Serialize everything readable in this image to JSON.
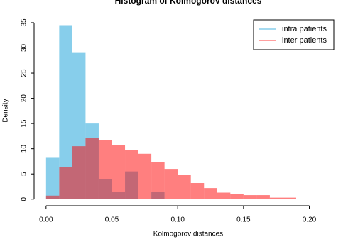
{
  "chart_data": {
    "type": "histogram",
    "title": "Histogram of Kolmogorov distances",
    "x_label": "Kolmogorov distances",
    "y_label": "Density",
    "bins": [
      0,
      0.01,
      0.02,
      0.03,
      0.04,
      0.05,
      0.06,
      0.07,
      0.08,
      0.09,
      0.1,
      0.11,
      0.12,
      0.13,
      0.14,
      0.15,
      0.16,
      0.17,
      0.18,
      0.19,
      0.2,
      0.21,
      0.22
    ],
    "series": [
      {
        "name": "intra patients",
        "color": "#87ceeb",
        "opacity": 1,
        "values": [
          8.2,
          34.5,
          29.0,
          15.0,
          4.0,
          1.4,
          5.5,
          0,
          1.4,
          0,
          0,
          0,
          0,
          0,
          0,
          0,
          0,
          0,
          0,
          0,
          0,
          0
        ]
      },
      {
        "name": "inter patients",
        "color": "#ff0000",
        "opacity": 0.5,
        "values": [
          0.7,
          6.3,
          10.5,
          12.1,
          11.7,
          10.7,
          9.7,
          9.0,
          7.3,
          6.0,
          4.8,
          3.2,
          2.2,
          1.3,
          1.0,
          0.8,
          0.8,
          0.3,
          0.3,
          0.1,
          0.1,
          0.1
        ]
      }
    ],
    "xlim": [
      -0.008,
      0.224
    ],
    "ylim": [
      -1.3,
      36.4
    ],
    "xticks": [
      {
        "value": 0,
        "label": "0.00"
      },
      {
        "value": 0.05,
        "label": "0.05"
      },
      {
        "value": 0.1,
        "label": "0.10"
      },
      {
        "value": 0.15,
        "label": "0.15"
      },
      {
        "value": 0.2,
        "label": "0.20"
      }
    ],
    "yticks": [
      0,
      5,
      10,
      15,
      20,
      25,
      30,
      35
    ],
    "legend": "top-right"
  }
}
